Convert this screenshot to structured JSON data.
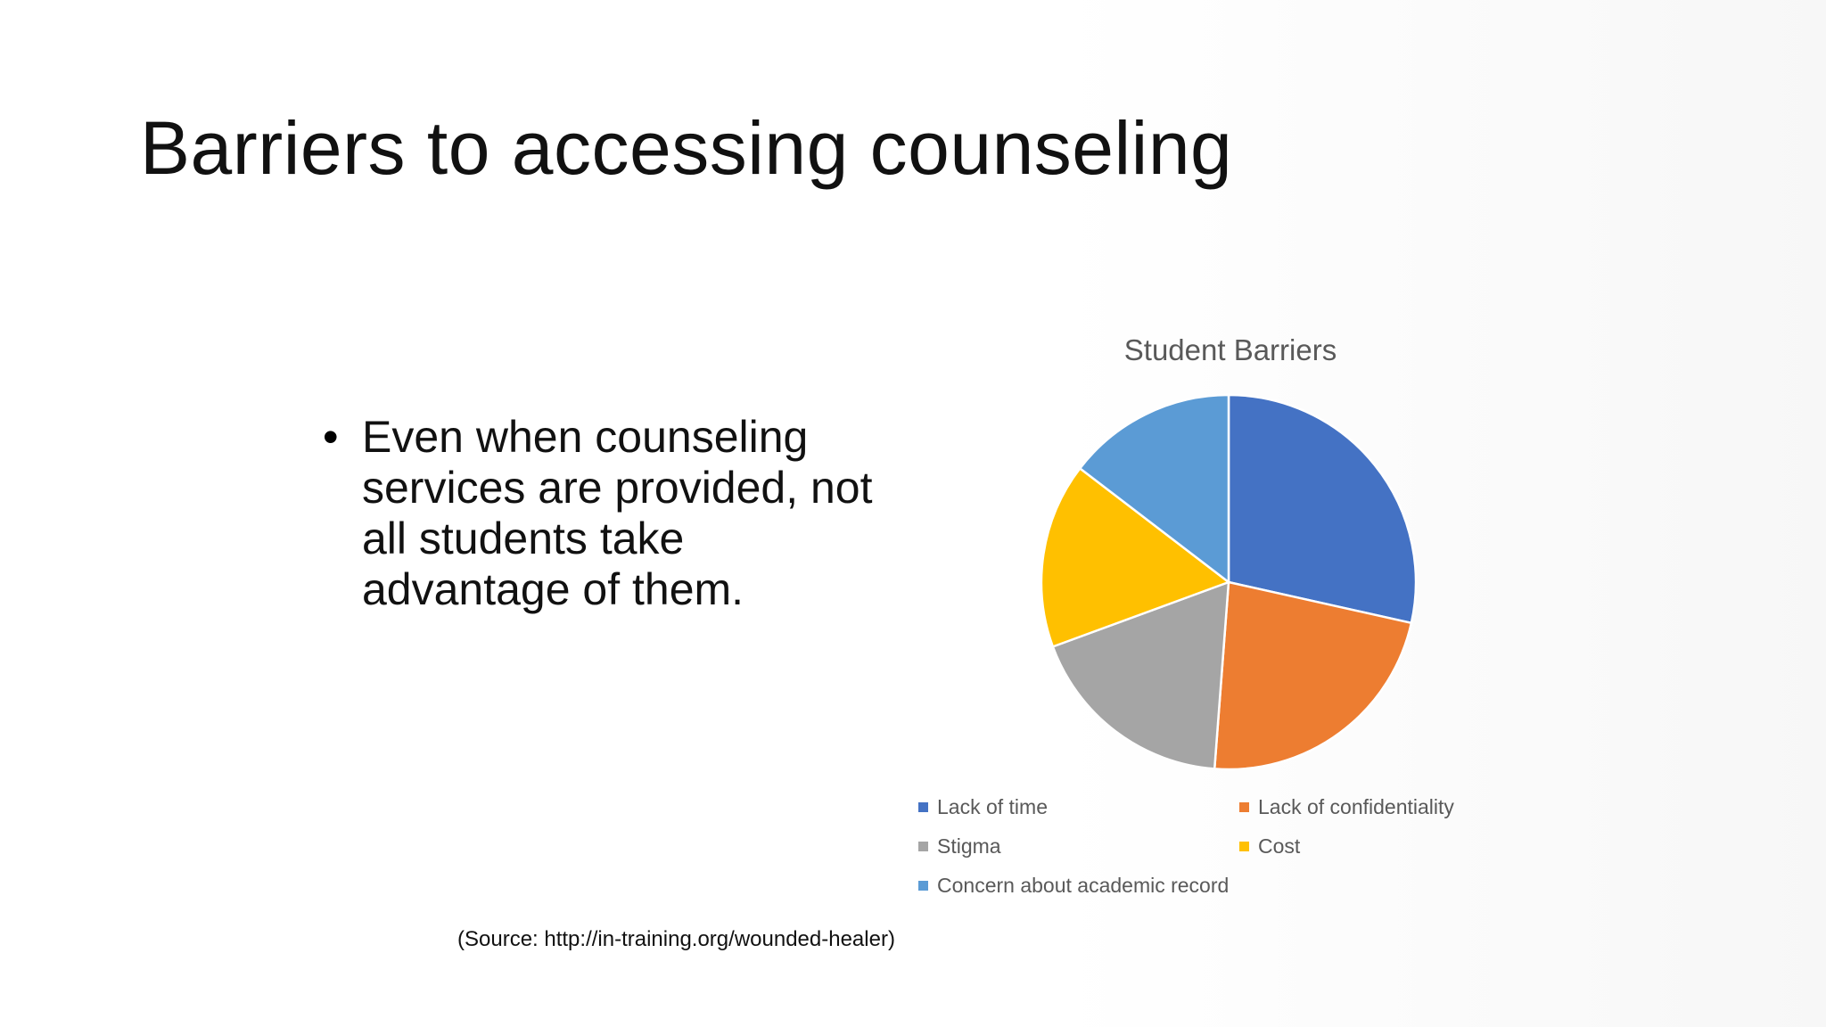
{
  "slide": {
    "title": "Barriers to accessing counseling",
    "bullet": "Even when counseling services are provided, not all students take advantage of them.",
    "source": "(Source: http://in-training.org/wounded-healer)"
  },
  "chart_data": {
    "type": "pie",
    "title": "Student Barriers",
    "categories": [
      "Lack of time",
      "Lack of confidentiality",
      "Stigma",
      "Cost",
      "Concern about academic record"
    ],
    "values": [
      28.5,
      22.7,
      18.2,
      16.0,
      14.6
    ],
    "colors": [
      "#4472C4",
      "#ED7D31",
      "#A5A5A5",
      "#FFC000",
      "#5B9BD5"
    ],
    "legend_position": "bottom"
  }
}
